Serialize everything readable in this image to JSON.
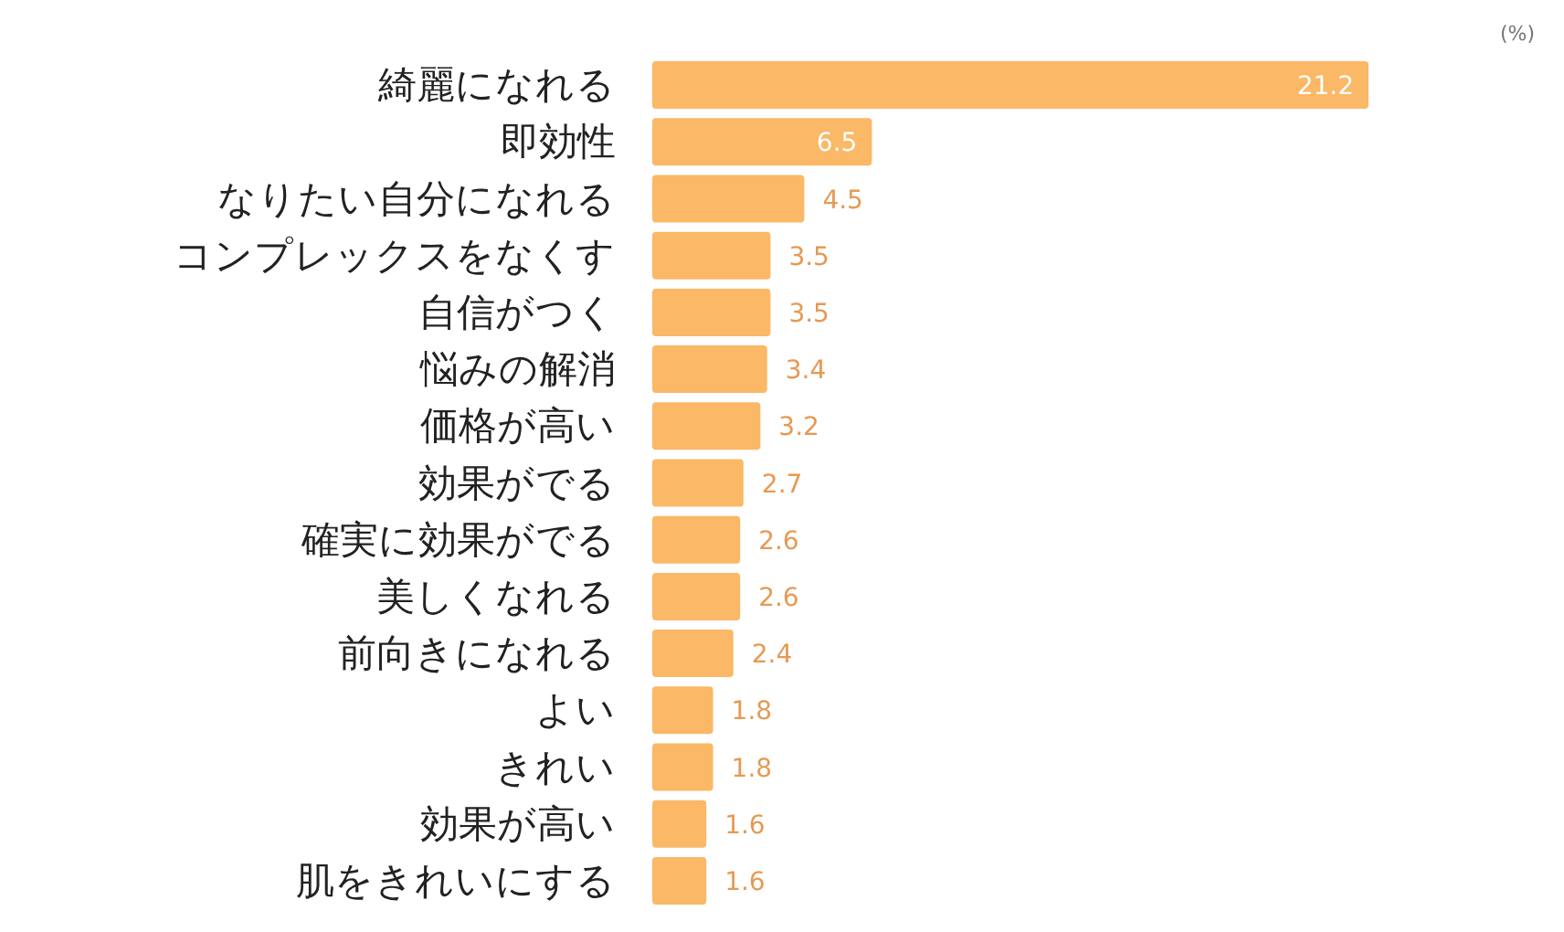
{
  "chart_data": {
    "type": "bar",
    "orientation": "horizontal",
    "color": "#fbb866",
    "data_labels": true,
    "categories": [
      "綺麗になれる",
      "即効性",
      "なりたい自分になれる",
      "コンプレックスをなくす",
      "自信がつく",
      "悩みの解消",
      "価格が高い",
      "効果がでる",
      "確実に効果がでる",
      "美しくなれる",
      "前向きになれる",
      "よい",
      "きれい",
      "効果が高い",
      "肌をきれいにする"
    ],
    "values": [
      21.2,
      6.5,
      4.5,
      3.5,
      3.5,
      3.4,
      3.2,
      2.7,
      2.6,
      2.6,
      2.4,
      1.8,
      1.8,
      1.6,
      1.6
    ],
    "annotations": [
      "(%)"
    ]
  }
}
